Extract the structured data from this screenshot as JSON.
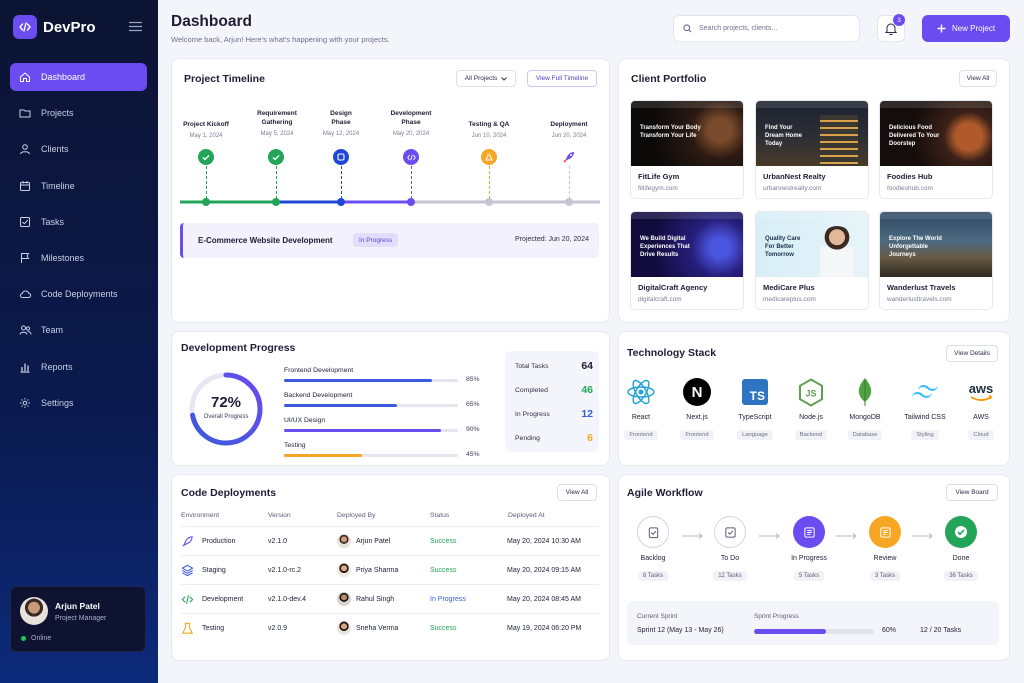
{
  "app": {
    "name": "DevPro",
    "accent": "#6a4cf0"
  },
  "sidebar": {
    "items": [
      {
        "label": "Dashboard",
        "icon": "home-icon",
        "active": true
      },
      {
        "label": "Projects",
        "icon": "folder-icon"
      },
      {
        "label": "Clients",
        "icon": "user-icon"
      },
      {
        "label": "Timeline",
        "icon": "calendar-icon"
      },
      {
        "label": "Tasks",
        "icon": "checkbox-icon"
      },
      {
        "label": "Milestones",
        "icon": "flag-icon"
      },
      {
        "label": "Code Deployments",
        "icon": "cloud-icon"
      },
      {
        "label": "Team",
        "icon": "team-icon"
      },
      {
        "label": "Reports",
        "icon": "bar-chart-icon"
      },
      {
        "label": "Settings",
        "icon": "gear-icon"
      }
    ],
    "user": {
      "name": "Arjun Patel",
      "role": "Project Manager",
      "status": "Online"
    }
  },
  "header": {
    "title": "Dashboard",
    "subtitle": "Welcome back, Arjun! Here's what's happening with your projects.",
    "search_placeholder": "Search projects, clients...",
    "notifications": "3",
    "new_project": "New Project"
  },
  "timeline": {
    "title": "Project Timeline",
    "filter": "All Projects",
    "view_full": "View Full Timeline",
    "milestones": [
      {
        "title": "Project Kickoff",
        "date": "May 1, 2024",
        "status": "done"
      },
      {
        "title": "Requirement Gathering",
        "date": "May 5, 2024",
        "status": "done"
      },
      {
        "title": "Design Phase",
        "date": "May 12, 2024",
        "status": "current"
      },
      {
        "title": "Development Phase",
        "date": "May 20, 2024",
        "status": "current"
      },
      {
        "title": "Testing & QA",
        "date": "Jun 10, 2024",
        "status": "upcoming"
      },
      {
        "title": "Deployment",
        "date": "Jun 20, 2024",
        "status": "upcoming"
      }
    ],
    "project": {
      "name": "E-Commerce Website Development",
      "status": "In Progress",
      "projected": "Projected: Jun 20, 2024"
    }
  },
  "clients": {
    "title": "Client Portfolio",
    "view_all": "View All",
    "items": [
      {
        "name": "FitLife Gym",
        "url": "fitlifegym.com",
        "hero": "Transform Your Body Transform Your Life"
      },
      {
        "name": "UrbanNest Realty",
        "url": "urbannestrealty.com",
        "hero": "Find Your Dream Home Today"
      },
      {
        "name": "Foodies Hub",
        "url": "foodieshub.com",
        "hero": "Delicious Food Delivered To Your Doorstep"
      },
      {
        "name": "DigitalCraft Agency",
        "url": "digitalcraft.com",
        "hero": "We Build Digital Experiences That Drive Results"
      },
      {
        "name": "MediCare Plus",
        "url": "medicareplus.com",
        "hero": "Quality Care For Better Tomorrow"
      },
      {
        "name": "Wanderlust Travels",
        "url": "wanderlusttravels.com",
        "hero": "Explore The World Unforgettable Journeys"
      }
    ]
  },
  "progress": {
    "title": "Development Progress",
    "overall_pct": "72%",
    "overall_value": 0.72,
    "overall_label": "Overall Progress",
    "bars": [
      {
        "label": "Frontend Development",
        "pct": "85%",
        "value": 0.85,
        "color": "#3b5bdb"
      },
      {
        "label": "Backend Development",
        "pct": "65%",
        "value": 0.65,
        "color": "#3b5bdb"
      },
      {
        "label": "UI/UX Design",
        "pct": "90%",
        "value": 0.9,
        "color": "#6a4cf0"
      },
      {
        "label": "Testing",
        "pct": "45%",
        "value": 0.45,
        "color": "#f5a623"
      }
    ],
    "stats": [
      {
        "label": "Total Tasks",
        "value": "64",
        "color": "#1c1e33"
      },
      {
        "label": "Completed",
        "value": "46",
        "color": "#22a559"
      },
      {
        "label": "In Progress",
        "value": "12",
        "color": "#3b5bdb"
      },
      {
        "label": "Pending",
        "value": "6",
        "color": "#f5a623"
      }
    ]
  },
  "tech": {
    "title": "Technology Stack",
    "view_details": "View Details",
    "items": [
      {
        "name": "React",
        "tag": "Frontend",
        "icon": "react-icon"
      },
      {
        "name": "Next.js",
        "tag": "Frontend",
        "icon": "nextjs-icon"
      },
      {
        "name": "TypeScript",
        "tag": "Language",
        "icon": "typescript-icon"
      },
      {
        "name": "Node.js",
        "tag": "Backend",
        "icon": "nodejs-icon"
      },
      {
        "name": "MongoDB",
        "tag": "Database",
        "icon": "mongodb-icon"
      },
      {
        "name": "Tailwind CSS",
        "tag": "Styling",
        "icon": "tailwind-icon"
      },
      {
        "name": "AWS",
        "tag": "Cloud",
        "icon": "aws-icon"
      }
    ]
  },
  "deployments": {
    "title": "Code Deployments",
    "view_all": "View All",
    "headers": [
      "Environment",
      "Version",
      "Deployed By",
      "Status",
      "Deployed At"
    ],
    "rows": [
      {
        "env": "Production",
        "version": "v2.1.0",
        "by": "Arjun Patel",
        "status": "Success",
        "at": "May 20, 2024 10:30 AM",
        "icon": "rocket-icon"
      },
      {
        "env": "Staging",
        "version": "v2.1.0-rc.2",
        "by": "Priya Sharma",
        "status": "Success",
        "at": "May 20, 2024 09:15 AM",
        "icon": "layers-icon"
      },
      {
        "env": "Development",
        "version": "v2.1.0-dev.4",
        "by": "Rahul Singh",
        "status": "In Progress",
        "at": "May 20, 2024 08:45 AM",
        "icon": "code-icon"
      },
      {
        "env": "Testing",
        "version": "v2.0.9",
        "by": "Sneha Verma",
        "status": "Success",
        "at": "May 19, 2024 06:20 PM",
        "icon": "flask-icon"
      }
    ]
  },
  "agile": {
    "title": "Agile Workflow",
    "view_board": "View Board",
    "stages": [
      {
        "name": "Backlog",
        "count": "8 Tasks"
      },
      {
        "name": "To Do",
        "count": "12 Tasks"
      },
      {
        "name": "In Progress",
        "count": "5 Tasks"
      },
      {
        "name": "Review",
        "count": "3 Tasks"
      },
      {
        "name": "Done",
        "count": "36 Tasks"
      }
    ],
    "sprint_label": "Current Sprint",
    "sprint_value": "Sprint 12 (May 13 - May 26)",
    "progress_label": "Sprint Progress",
    "progress_pct": "60%",
    "progress_value": 0.6,
    "progress_tasks": "12 / 20 Tasks"
  }
}
